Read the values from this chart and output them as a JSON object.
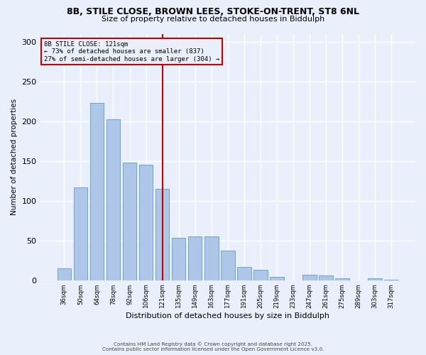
{
  "title1": "8B, STILE CLOSE, BROWN LEES, STOKE-ON-TRENT, ST8 6NL",
  "title2": "Size of property relative to detached houses in Biddulph",
  "xlabel": "Distribution of detached houses by size in Biddulph",
  "ylabel": "Number of detached properties",
  "categories": [
    "36sqm",
    "50sqm",
    "64sqm",
    "78sqm",
    "92sqm",
    "106sqm",
    "121sqm",
    "135sqm",
    "149sqm",
    "163sqm",
    "177sqm",
    "191sqm",
    "205sqm",
    "219sqm",
    "233sqm",
    "247sqm",
    "261sqm",
    "275sqm",
    "289sqm",
    "303sqm",
    "317sqm"
  ],
  "values": [
    15,
    117,
    223,
    202,
    148,
    145,
    115,
    53,
    55,
    55,
    37,
    17,
    13,
    4,
    0,
    7,
    6,
    2,
    0,
    2,
    1
  ],
  "bar_color": "#aec6e8",
  "bar_edge_color": "#5b9bd5",
  "marker_index": 6,
  "marker_color": "#cc0000",
  "annotation_line1": "8B STILE CLOSE: 121sqm",
  "annotation_line2": "← 73% of detached houses are smaller (837)",
  "annotation_line3": "27% of semi-detached houses are larger (304) →",
  "background_color": "#eaf0fb",
  "grid_color": "#ffffff",
  "ylim": [
    0,
    310
  ],
  "yticks": [
    0,
    50,
    100,
    150,
    200,
    250,
    300
  ],
  "footer1": "Contains HM Land Registry data © Crown copyright and database right 2025.",
  "footer2": "Contains public sector information licensed under the Open Government Licence v3.0."
}
